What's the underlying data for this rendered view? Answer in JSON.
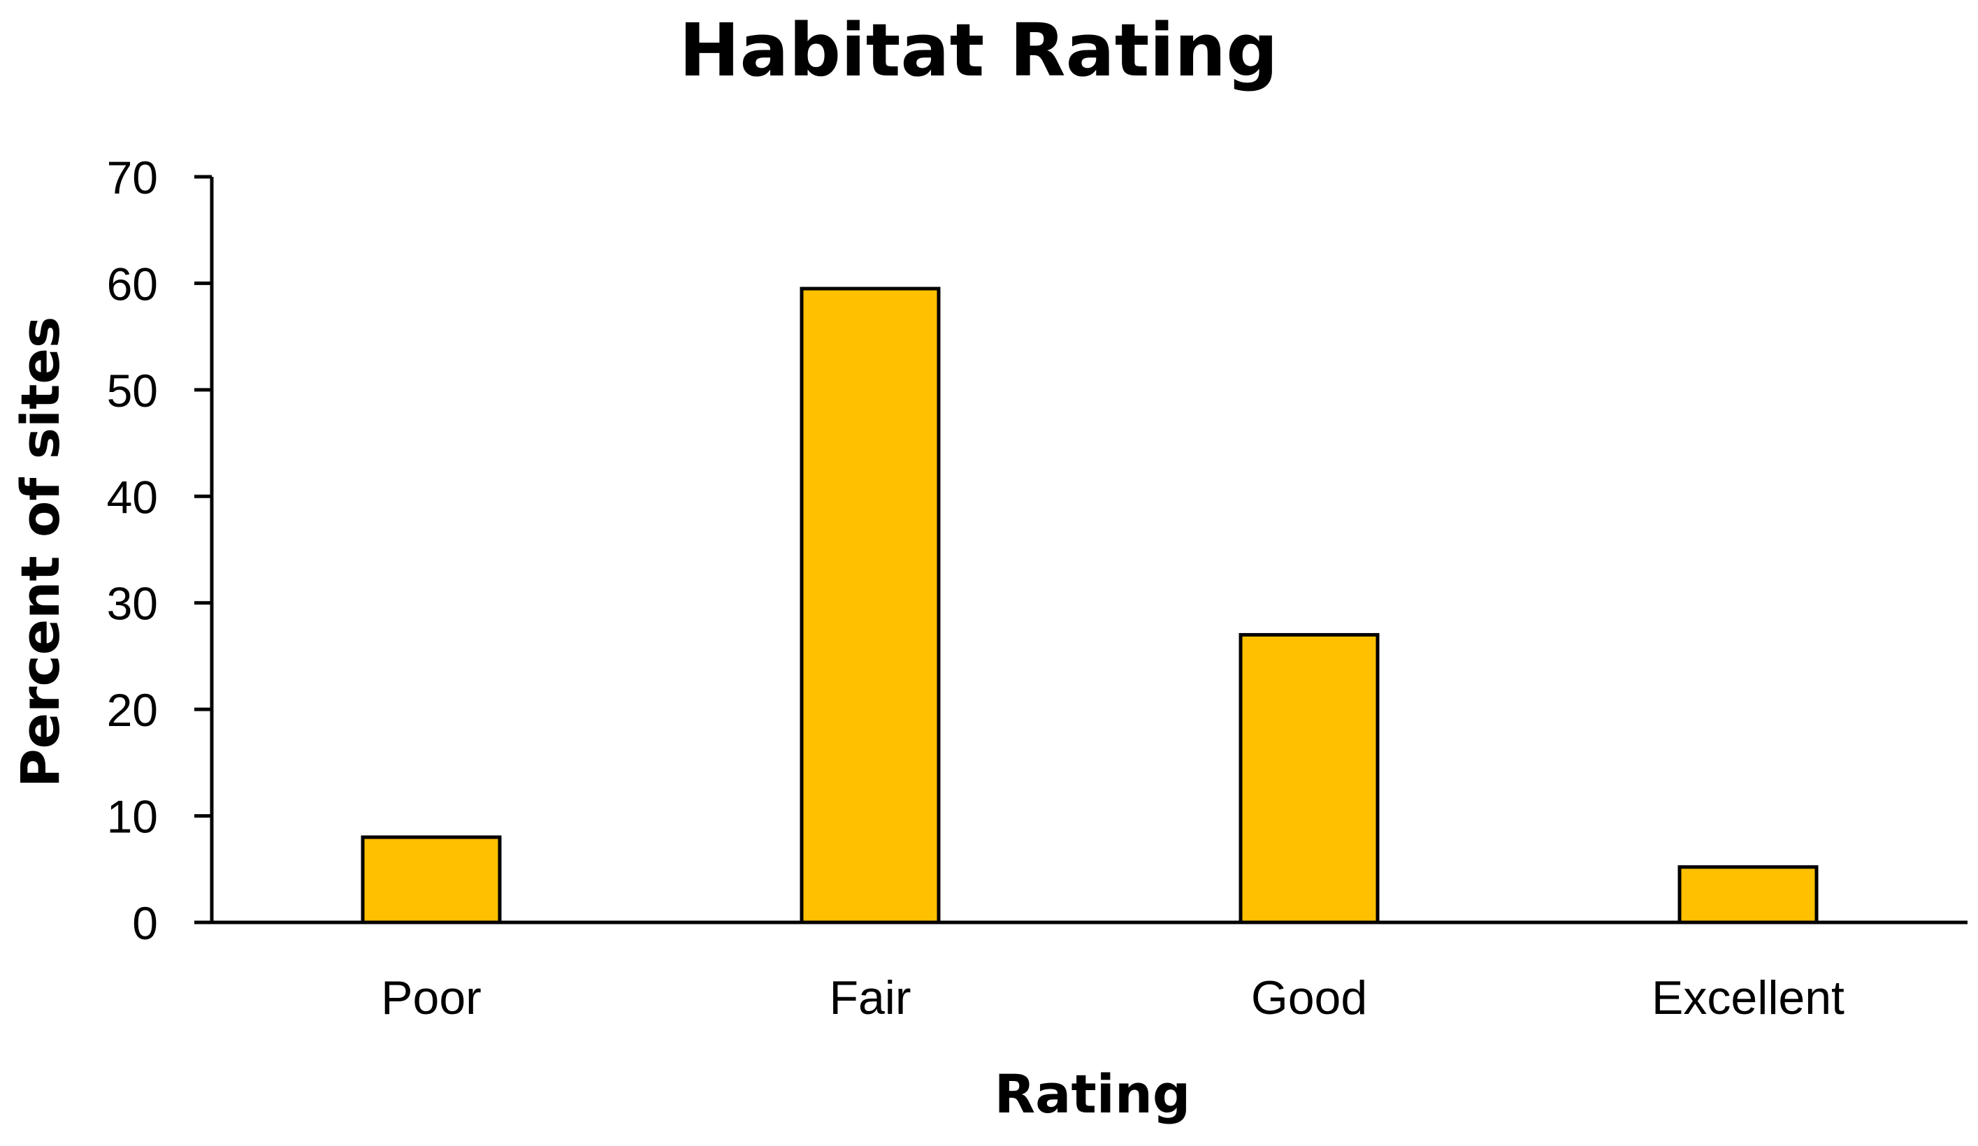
{
  "chart_data": {
    "type": "bar",
    "title": "Habitat Rating",
    "xlabel": "Rating",
    "ylabel": "Percent of sites",
    "categories": [
      "Poor",
      "Fair",
      "Good",
      "Excellent"
    ],
    "values": [
      8,
      59.5,
      27,
      5.2
    ],
    "ylim": [
      0,
      70
    ],
    "yticks": [
      "0",
      "10",
      "20",
      "30",
      "40",
      "50",
      "60",
      "70"
    ],
    "grid": false,
    "legend": "none",
    "bar_color": "#FFC000",
    "bar_outline_color": "#000000"
  }
}
